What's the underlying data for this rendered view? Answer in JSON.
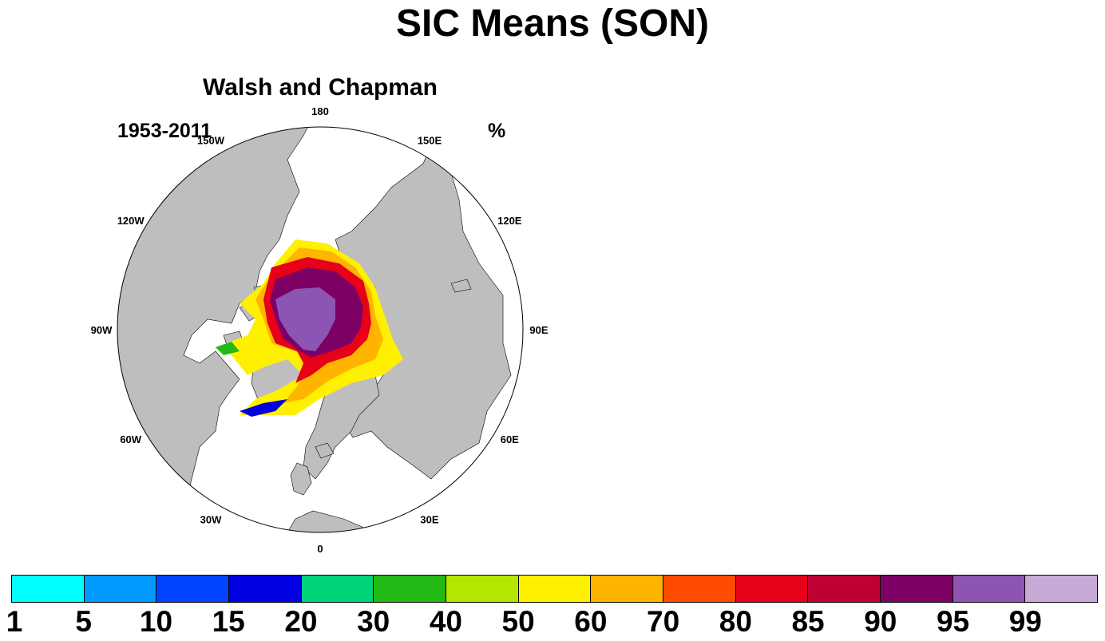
{
  "title": "SIC Means (SON)",
  "subtitle": "Walsh and Chapman",
  "period": "1953-2011",
  "units": "%",
  "longitude_labels": [
    {
      "text": "180",
      "lon": 180
    },
    {
      "text": "150E",
      "lon": 150
    },
    {
      "text": "120E",
      "lon": 120
    },
    {
      "text": "90E",
      "lon": 90
    },
    {
      "text": "60E",
      "lon": 60
    },
    {
      "text": "30E",
      "lon": 30
    },
    {
      "text": "0",
      "lon": 0
    },
    {
      "text": "30W",
      "lon": -30
    },
    {
      "text": "60W",
      "lon": -60
    },
    {
      "text": "90W",
      "lon": -90
    },
    {
      "text": "120W",
      "lon": -120
    },
    {
      "text": "150W",
      "lon": -150
    }
  ],
  "colors": {
    "land": "#bebebe",
    "ocean": "#ffffff",
    "levels": [
      "#00ffff",
      "#0099ff",
      "#0044ff",
      "#0000e0",
      "#00d27a",
      "#22b915",
      "#b4e600",
      "#fff000",
      "#ffb400",
      "#ff4b00",
      "#e60019",
      "#be0032",
      "#7d0064",
      "#8c55b4",
      "#c8aad7"
    ]
  },
  "colorbar_labels": [
    "1",
    "5",
    "10",
    "15",
    "20",
    "30",
    "40",
    "50",
    "60",
    "70",
    "80",
    "85",
    "90",
    "95",
    "99"
  ]
}
